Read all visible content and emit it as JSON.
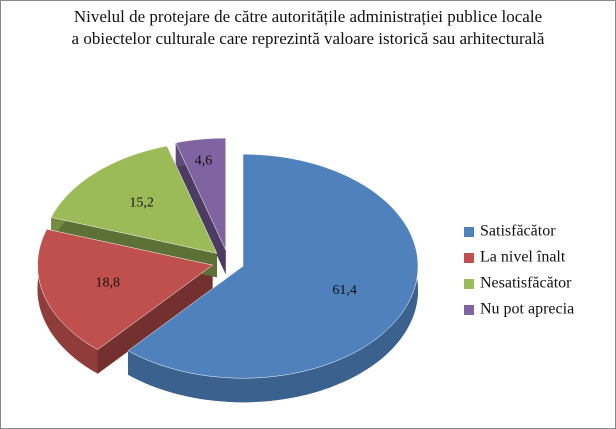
{
  "chart_data": {
    "type": "pie3d",
    "title": "Nivelul de protejare de către autoritățile administrației publice locale\na obiectelor culturale care reprezintă valoare istorică sau arhitecturală",
    "categories": [
      "Satisfăcător",
      "La nivel înalt",
      "Nesatisfăcător",
      "Nu pot aprecia"
    ],
    "values": [
      61.4,
      18.8,
      15.2,
      4.6
    ],
    "value_labels": [
      "61,4",
      "18,8",
      "15,2",
      "4,6"
    ],
    "colors": [
      "#4f81bd",
      "#c0504d",
      "#9bbb59",
      "#8064a2"
    ],
    "legend": "right"
  }
}
